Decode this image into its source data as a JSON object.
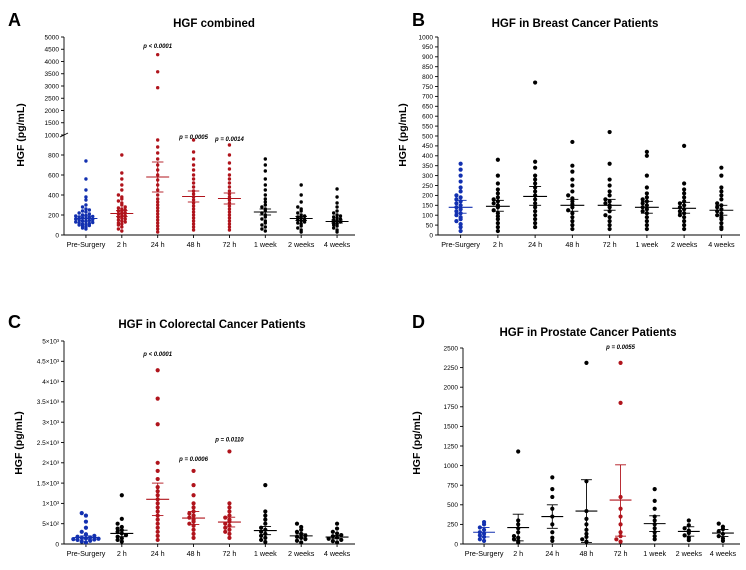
{
  "colors": {
    "pre": "#1230b0",
    "sig": "#b0141c",
    "other": "#000000"
  },
  "chart_data": [
    {
      "letter": "A",
      "type": "scatter",
      "title": "HGF combined",
      "ylabel": "HGF (pg/mL)",
      "categories": [
        "Pre-Surgery",
        "2 h",
        "24 h",
        "48 h",
        "72 h",
        "1 week",
        "2 weeks",
        "4 weeks"
      ],
      "yaxis": {
        "type": "broken",
        "lower": [
          0,
          1000
        ],
        "upper": [
          1000,
          5000
        ],
        "lower_ticks": [
          0,
          200,
          400,
          600,
          800,
          1000
        ],
        "upper_ticks": [
          1500,
          2000,
          2500,
          3000,
          3500,
          4000,
          4500,
          5000
        ],
        "tick_labels": {
          "0": "0",
          "200": "200",
          "400": "400",
          "600": "600",
          "800": "800",
          "1000": "1000",
          "1500": "1500",
          "2000": "2000",
          "2500": "2500",
          "3000": "3000",
          "3500": "3500",
          "4000": "4000",
          "4500": "4500",
          "5000": "5000"
        }
      },
      "means": [
        165,
        215,
        580,
        385,
        365,
        230,
        165,
        135
      ],
      "ci": [
        [
          140,
          190
        ],
        [
          185,
          245
        ],
        [
          430,
          730
        ],
        [
          330,
          440
        ],
        [
          310,
          420
        ],
        [
          200,
          260
        ],
        [
          145,
          185
        ],
        [
          120,
          150
        ]
      ],
      "highlight": [
        0,
        1,
        1,
        1,
        1,
        0,
        0,
        0
      ],
      "pvalues": [
        null,
        null,
        "p < 0.0001",
        "p = 0.0005",
        "p = 0.0014",
        null,
        null,
        null
      ],
      "points": [
        [
          60,
          70,
          80,
          90,
          95,
          100,
          105,
          110,
          115,
          120,
          125,
          130,
          135,
          140,
          145,
          150,
          155,
          160,
          165,
          170,
          175,
          180,
          185,
          190,
          195,
          200,
          210,
          220,
          230,
          240,
          250,
          260,
          280,
          300,
          350,
          380,
          450,
          560,
          740
        ],
        [
          40,
          60,
          80,
          100,
          110,
          120,
          130,
          140,
          150,
          160,
          170,
          180,
          190,
          200,
          210,
          220,
          230,
          240,
          250,
          260,
          270,
          280,
          300,
          320,
          340,
          360,
          380,
          400,
          450,
          500,
          560,
          620,
          800
        ],
        [
          30,
          60,
          90,
          120,
          150,
          180,
          210,
          240,
          270,
          300,
          330,
          360,
          400,
          450,
          500,
          550,
          600,
          650,
          700,
          760,
          820,
          880,
          950,
          2930,
          3580,
          4280
        ],
        [
          50,
          80,
          110,
          140,
          170,
          200,
          230,
          260,
          290,
          320,
          350,
          380,
          410,
          440,
          480,
          520,
          560,
          600,
          650,
          700,
          760,
          830,
          950
        ],
        [
          50,
          80,
          110,
          140,
          170,
          200,
          230,
          260,
          290,
          320,
          350,
          380,
          410,
          440,
          480,
          520,
          560,
          600,
          660,
          720,
          800,
          900
        ],
        [
          40,
          60,
          80,
          100,
          120,
          140,
          160,
          180,
          200,
          220,
          240,
          260,
          280,
          300,
          330,
          360,
          400,
          450,
          500,
          560,
          640,
          700,
          760
        ],
        [
          30,
          50,
          70,
          90,
          110,
          120,
          130,
          140,
          150,
          160,
          170,
          180,
          190,
          200,
          220,
          240,
          260,
          280,
          330,
          400,
          500
        ],
        [
          30,
          50,
          70,
          90,
          100,
          110,
          120,
          130,
          140,
          150,
          160,
          170,
          180,
          190,
          200,
          220,
          240,
          280,
          320,
          380,
          460
        ]
      ]
    },
    {
      "letter": "B",
      "type": "scatter",
      "title": "HGF in Breast Cancer Patients",
      "ylabel": "HGF (pg/mL)",
      "categories": [
        "Pre-Surgery",
        "2 h",
        "24 h",
        "48 h",
        "72 h",
        "1 week",
        "2 weeks",
        "4 weeks"
      ],
      "yaxis": {
        "type": "linear",
        "range": [
          0,
          1000
        ],
        "ticks": [
          0,
          50,
          100,
          150,
          200,
          250,
          300,
          350,
          400,
          450,
          500,
          550,
          600,
          650,
          700,
          750,
          800,
          850,
          900,
          950,
          1000
        ],
        "tick_labels": {
          "0": "0",
          "50": "50",
          "100": "100",
          "150": "150",
          "200": "200",
          "250": "250",
          "300": "300",
          "350": "350",
          "400": "400",
          "450": "450",
          "500": "500",
          "550": "550",
          "600": "600",
          "650": "650",
          "700": "700",
          "750": "750",
          "800": "800",
          "850": "850",
          "900": "900",
          "950": "950",
          "1000": "1000"
        }
      },
      "means": [
        140,
        145,
        195,
        150,
        150,
        140,
        135,
        125
      ],
      "ci": [
        [
          110,
          175
        ],
        [
          120,
          175
        ],
        [
          150,
          245
        ],
        [
          120,
          180
        ],
        [
          125,
          180
        ],
        [
          110,
          170
        ],
        [
          110,
          165
        ],
        [
          100,
          150
        ]
      ],
      "highlight": [
        0,
        0,
        0,
        0,
        0,
        0,
        0,
        0
      ],
      "pvalues": [
        null,
        null,
        null,
        null,
        null,
        null,
        null,
        null
      ],
      "points": [
        [
          20,
          40,
          55,
          70,
          80,
          90,
          100,
          110,
          120,
          130,
          140,
          150,
          160,
          170,
          180,
          190,
          200,
          220,
          240,
          270,
          300,
          330,
          360
        ],
        [
          20,
          40,
          60,
          80,
          95,
          110,
          125,
          140,
          150,
          160,
          170,
          180,
          190,
          210,
          230,
          260,
          300,
          380
        ],
        [
          40,
          60,
          80,
          100,
          120,
          140,
          160,
          180,
          200,
          220,
          240,
          260,
          280,
          300,
          340,
          370,
          770
        ],
        [
          30,
          50,
          70,
          90,
          110,
          125,
          140,
          155,
          170,
          185,
          200,
          220,
          250,
          280,
          320,
          350,
          470
        ],
        [
          30,
          50,
          70,
          90,
          100,
          120,
          140,
          150,
          160,
          170,
          180,
          200,
          220,
          250,
          280,
          360,
          520
        ],
        [
          30,
          50,
          70,
          90,
          110,
          120,
          130,
          140,
          150,
          160,
          170,
          180,
          190,
          210,
          240,
          300,
          400,
          420
        ],
        [
          30,
          50,
          70,
          90,
          100,
          110,
          120,
          130,
          140,
          150,
          160,
          170,
          190,
          210,
          230,
          260,
          450
        ],
        [
          30,
          40,
          60,
          80,
          90,
          100,
          110,
          120,
          130,
          140,
          150,
          160,
          180,
          200,
          220,
          240,
          300,
          340
        ]
      ]
    },
    {
      "letter": "C",
      "type": "scatter",
      "title": "HGF in Colorectal Cancer Patients",
      "ylabel": "HGF (pg/mL)",
      "categories": [
        "Pre-Surgery",
        "2 h",
        "24 h",
        "48 h",
        "72 h",
        "1 week",
        "2 weeks",
        "4 weeks"
      ],
      "yaxis": {
        "type": "linear",
        "range": [
          0,
          5000
        ],
        "ticks": [
          0,
          500,
          1000,
          1500,
          2000,
          2500,
          3000,
          3500,
          4000,
          4500,
          5000
        ],
        "tick_labels": {
          "0": "0",
          "500": "5×10²",
          "1000": "1×10³",
          "1500": "1.5×10³",
          "2000": "2×10³",
          "2500": "2.5×10³",
          "3000": "3×10³",
          "3500": "3.5×10³",
          "4000": "4×10³",
          "4500": "4.5×10³",
          "5000": "5×10³"
        }
      },
      "means": [
        160,
        260,
        1100,
        640,
        540,
        330,
        200,
        170
      ],
      "ci": [
        [
          120,
          200
        ],
        [
          180,
          340
        ],
        [
          700,
          1500
        ],
        [
          480,
          800
        ],
        [
          420,
          660
        ],
        [
          230,
          430
        ],
        [
          150,
          250
        ],
        [
          130,
          210
        ]
      ],
      "highlight": [
        0,
        0,
        1,
        1,
        1,
        0,
        0,
        0
      ],
      "pvalues": [
        null,
        null,
        "p < 0.0001",
        "p = 0.0006",
        "p = 0.0110",
        null,
        null,
        null
      ],
      "points": [
        [
          40,
          60,
          80,
          100,
          110,
          120,
          130,
          140,
          150,
          160,
          180,
          200,
          240,
          300,
          400,
          550,
          700,
          760
        ],
        [
          60,
          100,
          140,
          180,
          220,
          260,
          300,
          340,
          380,
          420,
          500,
          620,
          1200
        ],
        [
          100,
          200,
          300,
          400,
          500,
          600,
          700,
          800,
          900,
          1000,
          1100,
          1200,
          1300,
          1400,
          1600,
          1800,
          2000,
          2950,
          3580,
          4280
        ],
        [
          150,
          250,
          350,
          450,
          500,
          550,
          600,
          650,
          700,
          750,
          800,
          900,
          1000,
          1200,
          1450,
          1800
        ],
        [
          150,
          250,
          300,
          350,
          400,
          450,
          500,
          550,
          600,
          650,
          700,
          800,
          900,
          1000,
          2280
        ],
        [
          50,
          100,
          150,
          200,
          250,
          300,
          350,
          400,
          500,
          600,
          700,
          800,
          1450
        ],
        [
          40,
          80,
          120,
          150,
          180,
          210,
          250,
          300,
          350,
          420,
          500
        ],
        [
          40,
          70,
          100,
          130,
          160,
          190,
          220,
          260,
          300,
          380,
          500
        ]
      ]
    },
    {
      "letter": "D",
      "type": "scatter",
      "title": "HGF in Prostate Cancer Patients",
      "ylabel": "HGF (pg/mL)",
      "categories": [
        "Pre-Surgery",
        "2 h",
        "24 h",
        "48 h",
        "72 h",
        "1 week",
        "2 weeks",
        "4 weeks"
      ],
      "yaxis": {
        "type": "linear",
        "range": [
          0,
          2500
        ],
        "ticks": [
          0,
          250,
          500,
          750,
          1000,
          1250,
          1500,
          1750,
          2000,
          2250,
          2500
        ],
        "tick_labels": {
          "0": "0",
          "250": "250",
          "500": "500",
          "750": "750",
          "1000": "1000",
          "1250": "1250",
          "1500": "1500",
          "1750": "1750",
          "2000": "2000",
          "2250": "2250",
          "2500": "2500"
        }
      },
      "means": [
        150,
        210,
        350,
        420,
        560,
        260,
        160,
        140
      ],
      "ci": [
        [
          90,
          210
        ],
        [
          40,
          380
        ],
        [
          200,
          500
        ],
        [
          20,
          820
        ],
        [
          100,
          1010
        ],
        [
          160,
          360
        ],
        [
          100,
          220
        ],
        [
          95,
          185
        ]
      ],
      "highlight": [
        0,
        0,
        0,
        0,
        1,
        0,
        0,
        0
      ],
      "pvalues": [
        null,
        null,
        null,
        null,
        "p = 0.0055",
        null,
        null,
        null
      ],
      "points": [
        [
          40,
          60,
          90,
          110,
          130,
          150,
          180,
          210,
          250,
          280
        ],
        [
          20,
          40,
          60,
          80,
          100,
          150,
          200,
          250,
          300,
          1180
        ],
        [
          40,
          80,
          150,
          250,
          350,
          450,
          600,
          700,
          850
        ],
        [
          30,
          60,
          90,
          130,
          180,
          250,
          320,
          420,
          800,
          2310
        ],
        [
          30,
          60,
          100,
          150,
          250,
          350,
          450,
          600,
          1800,
          2310
        ],
        [
          60,
          100,
          150,
          200,
          250,
          300,
          350,
          450,
          550,
          700
        ],
        [
          50,
          80,
          110,
          140,
          170,
          200,
          240,
          300
        ],
        [
          40,
          70,
          100,
          130,
          160,
          190,
          220,
          260
        ]
      ]
    }
  ]
}
